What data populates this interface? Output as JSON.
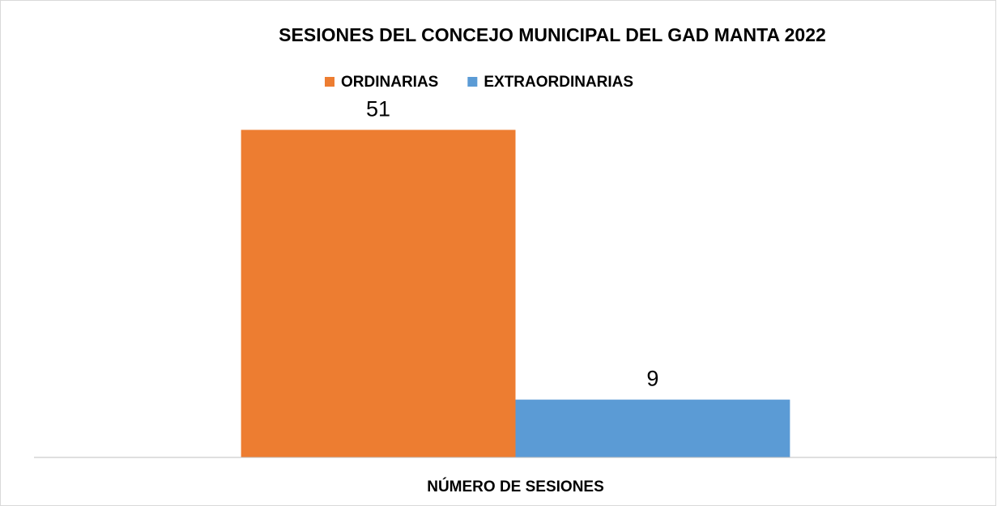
{
  "chart_data": {
    "type": "bar",
    "title": "SESIONES DEL CONCEJO MUNICIPAL DEL GAD MANTA 2022",
    "categories": [
      "NÚMERO DE SESIONES"
    ],
    "series": [
      {
        "name": "ORDINARIAS",
        "color": "#ed7d31",
        "values": [
          51
        ]
      },
      {
        "name": "EXTRAORDINARIAS",
        "color": "#5b9bd5",
        "values": [
          9
        ]
      }
    ],
    "ylim": [
      0,
      60
    ],
    "legend": "top"
  }
}
